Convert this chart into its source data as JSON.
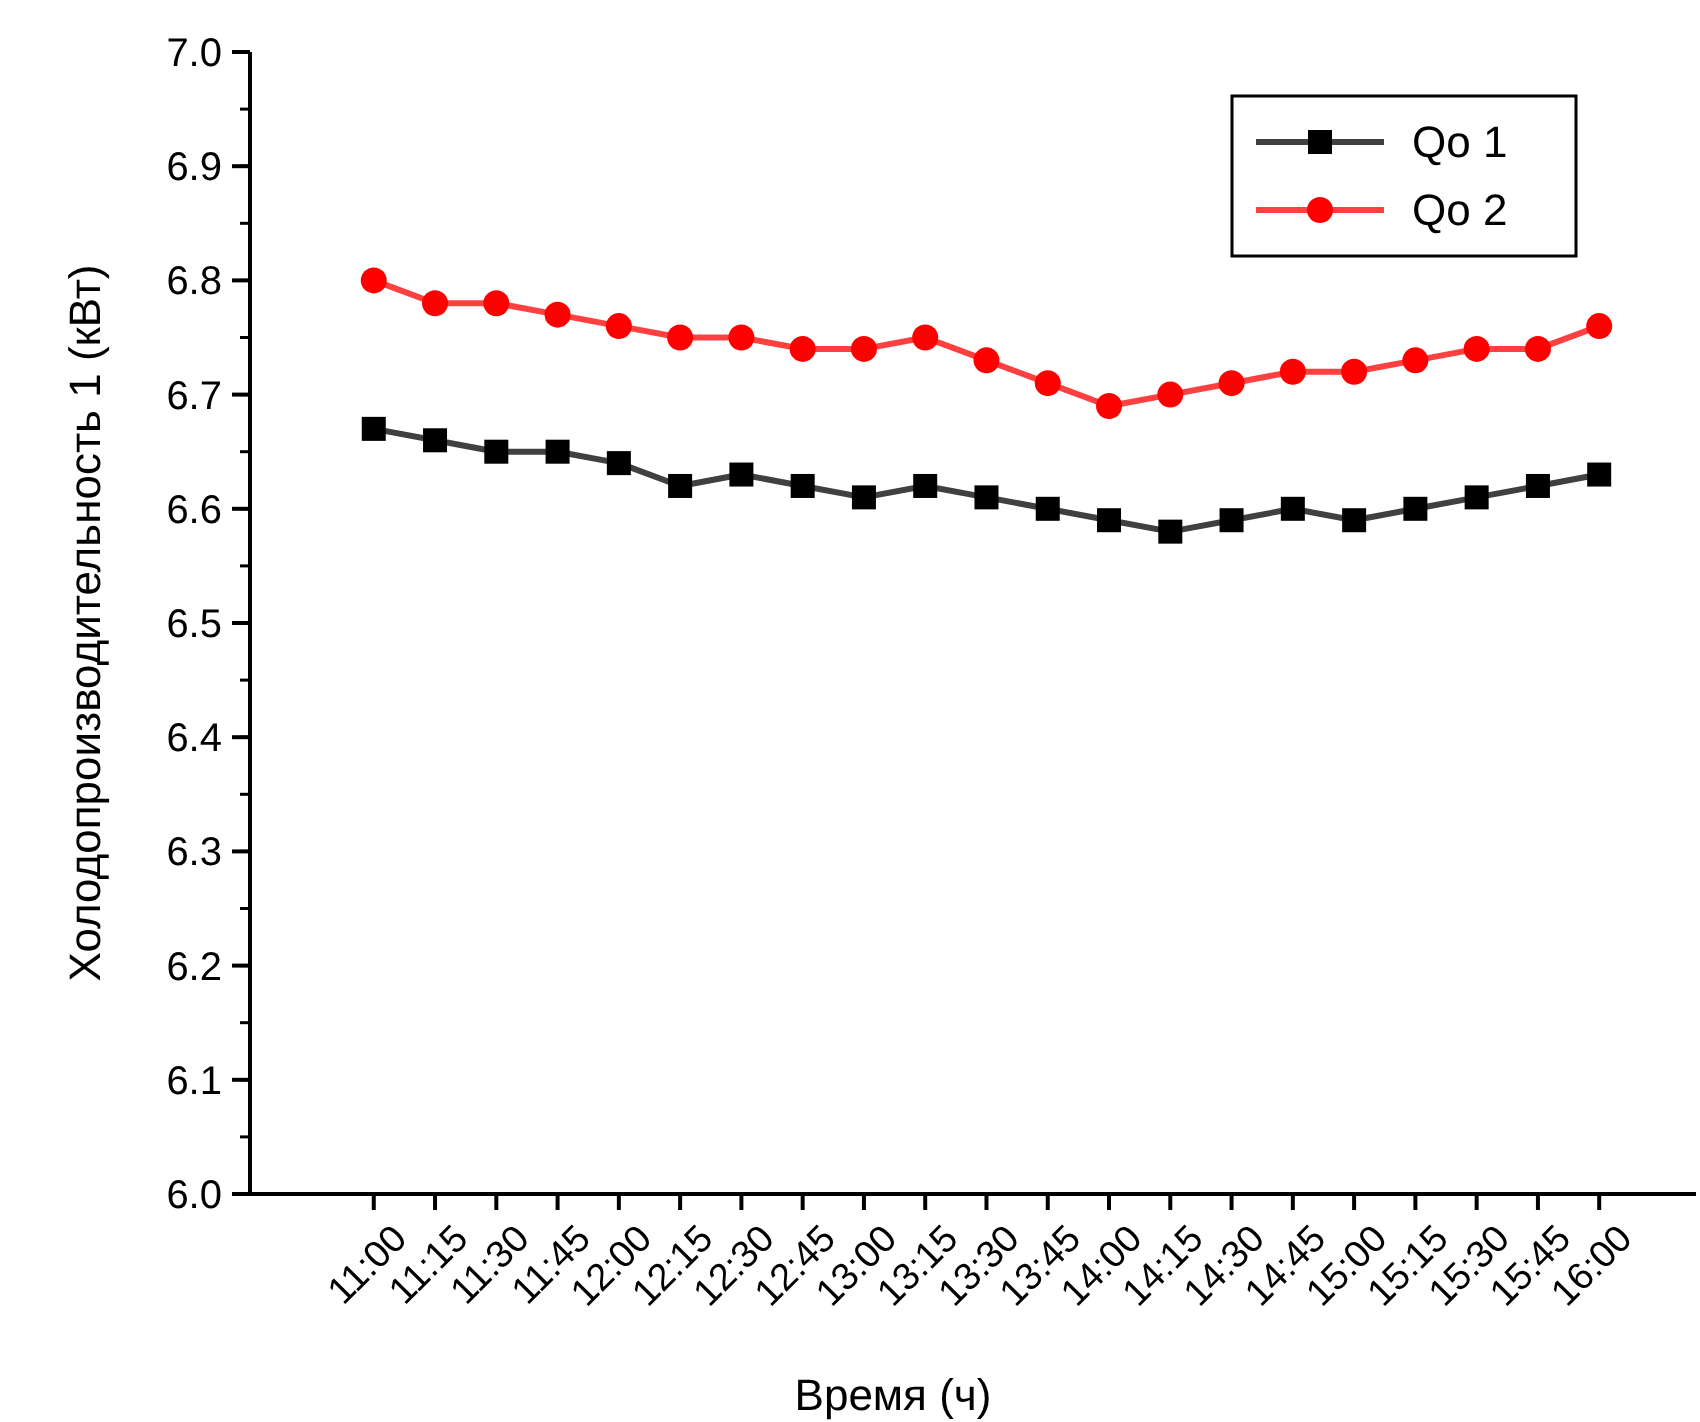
{
  "chart_data": {
    "type": "line",
    "xlabel": "Время (ч)",
    "ylabel": "Холодопроизводительность 1 (кВт)",
    "categories": [
      "11:00",
      "11:15",
      "11:30",
      "11:45",
      "12:00",
      "12:15",
      "12:30",
      "12:45",
      "13:00",
      "13:15",
      "13:30",
      "13:45",
      "14:00",
      "14:15",
      "14:30",
      "14:45",
      "15:00",
      "15:15",
      "15:30",
      "15:45",
      "16:00"
    ],
    "series": [
      {
        "name": "Qo 1",
        "color": "#000000",
        "marker": "square",
        "values": [
          6.67,
          6.66,
          6.65,
          6.65,
          6.64,
          6.62,
          6.63,
          6.62,
          6.61,
          6.62,
          6.61,
          6.6,
          6.59,
          6.58,
          6.59,
          6.6,
          6.59,
          6.6,
          6.61,
          6.62,
          6.63
        ]
      },
      {
        "name": "Qo 2",
        "color": "#ff0000",
        "marker": "circle",
        "values": [
          6.8,
          6.78,
          6.78,
          6.77,
          6.76,
          6.75,
          6.75,
          6.74,
          6.74,
          6.75,
          6.73,
          6.71,
          6.69,
          6.7,
          6.71,
          6.72,
          6.72,
          6.73,
          6.74,
          6.74,
          6.76
        ]
      }
    ],
    "ylim": [
      6.0,
      7.0
    ],
    "yticks": [
      {
        "value": 6,
        "label": "6.0"
      },
      6.1,
      6.2,
      6.3,
      6.4,
      6.5,
      6.6,
      6.7,
      6.8,
      6.9,
      {
        "value": 7,
        "label": "7.0"
      }
    ],
    "legend": "top right",
    "line_style": "solid"
  }
}
